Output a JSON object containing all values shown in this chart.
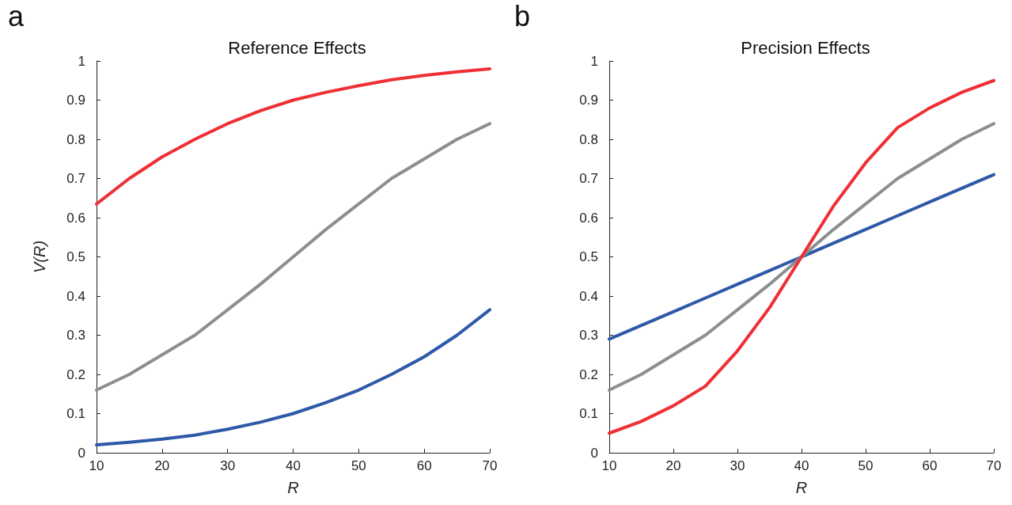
{
  "chart_data": [
    {
      "type": "line",
      "title": "Reference Effects",
      "xlabel": "R",
      "ylabel": "V(R)",
      "annotations": [
        "a"
      ],
      "x": [
        10,
        15,
        20,
        25,
        30,
        35,
        40,
        45,
        50,
        55,
        60,
        65,
        70
      ],
      "xlim": [
        10,
        70
      ],
      "xticks": [
        10,
        20,
        30,
        40,
        50,
        60,
        70
      ],
      "ylim": [
        0,
        1
      ],
      "yticks": [
        0,
        0.1,
        0.2,
        0.3,
        0.4,
        0.5,
        0.6,
        0.7,
        0.8,
        0.9,
        1
      ],
      "marker": "none",
      "line_style": "solid",
      "series": [
        {
          "color": "#ee3035",
          "values": [
            0.635,
            0.7,
            0.755,
            0.8,
            0.84,
            0.873,
            0.9,
            0.92,
            0.937,
            0.952,
            0.963,
            0.972,
            0.98
          ]
        },
        {
          "color": "#8c8f91",
          "values": [
            0.16,
            0.2,
            0.25,
            0.3,
            0.365,
            0.43,
            0.5,
            0.57,
            0.635,
            0.7,
            0.75,
            0.8,
            0.84
          ]
        },
        {
          "color": "#2e59a8",
          "values": [
            0.02,
            0.027,
            0.035,
            0.045,
            0.06,
            0.078,
            0.1,
            0.128,
            0.16,
            0.2,
            0.245,
            0.3,
            0.365
          ]
        }
      ]
    },
    {
      "type": "line",
      "title": "Precision Effects",
      "xlabel": "R",
      "annotations": [
        "b"
      ],
      "x": [
        10,
        15,
        20,
        25,
        30,
        35,
        40,
        45,
        50,
        55,
        60,
        65,
        70
      ],
      "xlim": [
        10,
        70
      ],
      "xticks": [
        10,
        20,
        30,
        40,
        50,
        60,
        70
      ],
      "ylim": [
        0,
        1
      ],
      "yticks": [
        0,
        0.1,
        0.2,
        0.3,
        0.4,
        0.5,
        0.6,
        0.7,
        0.8,
        0.9,
        1
      ],
      "marker": "none",
      "line_style": "solid",
      "series": [
        {
          "color": "#2e59a8",
          "values": [
            0.29,
            0.325,
            0.36,
            0.395,
            0.43,
            0.465,
            0.5,
            0.535,
            0.57,
            0.605,
            0.64,
            0.675,
            0.71
          ]
        },
        {
          "color": "#8c8f91",
          "values": [
            0.16,
            0.2,
            0.25,
            0.3,
            0.365,
            0.43,
            0.5,
            0.57,
            0.635,
            0.7,
            0.75,
            0.8,
            0.84
          ]
        },
        {
          "color": "#ee3035",
          "values": [
            0.05,
            0.08,
            0.12,
            0.17,
            0.26,
            0.37,
            0.5,
            0.63,
            0.74,
            0.83,
            0.88,
            0.92,
            0.95
          ]
        }
      ]
    }
  ]
}
